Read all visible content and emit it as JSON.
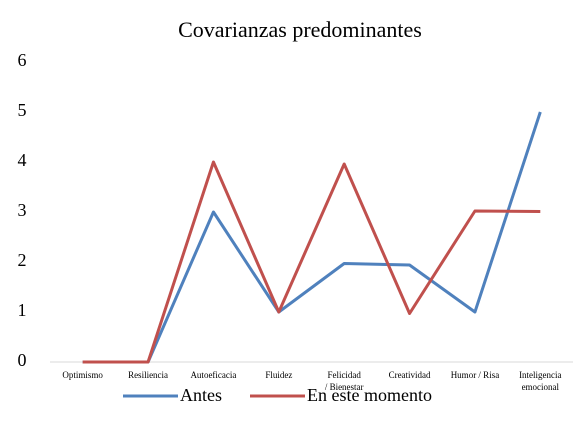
{
  "chart_data": {
    "type": "line",
    "title": "Covarianzas predominantes",
    "categories": [
      "Optimismo",
      "Resiliencia",
      "Autoeficacia",
      "Fluidez",
      "Felicidad / Bienestar",
      "Creatividad",
      "Humor / Risa",
      "Inteligencia emocional"
    ],
    "series": [
      {
        "name": "Antes",
        "color": "#4f81bd",
        "values": [
          0,
          0,
          3,
          1,
          1.97,
          1.94,
          1,
          5
        ]
      },
      {
        "name": "En este momento",
        "color": "#c0504d",
        "values": [
          0,
          0,
          4,
          1,
          3.96,
          0.97,
          3.02,
          3.01
        ]
      }
    ],
    "ylim": [
      0,
      6
    ],
    "yticks": [
      0,
      1,
      2,
      3,
      4,
      5,
      6
    ],
    "grid": false,
    "legend": "bottom"
  }
}
